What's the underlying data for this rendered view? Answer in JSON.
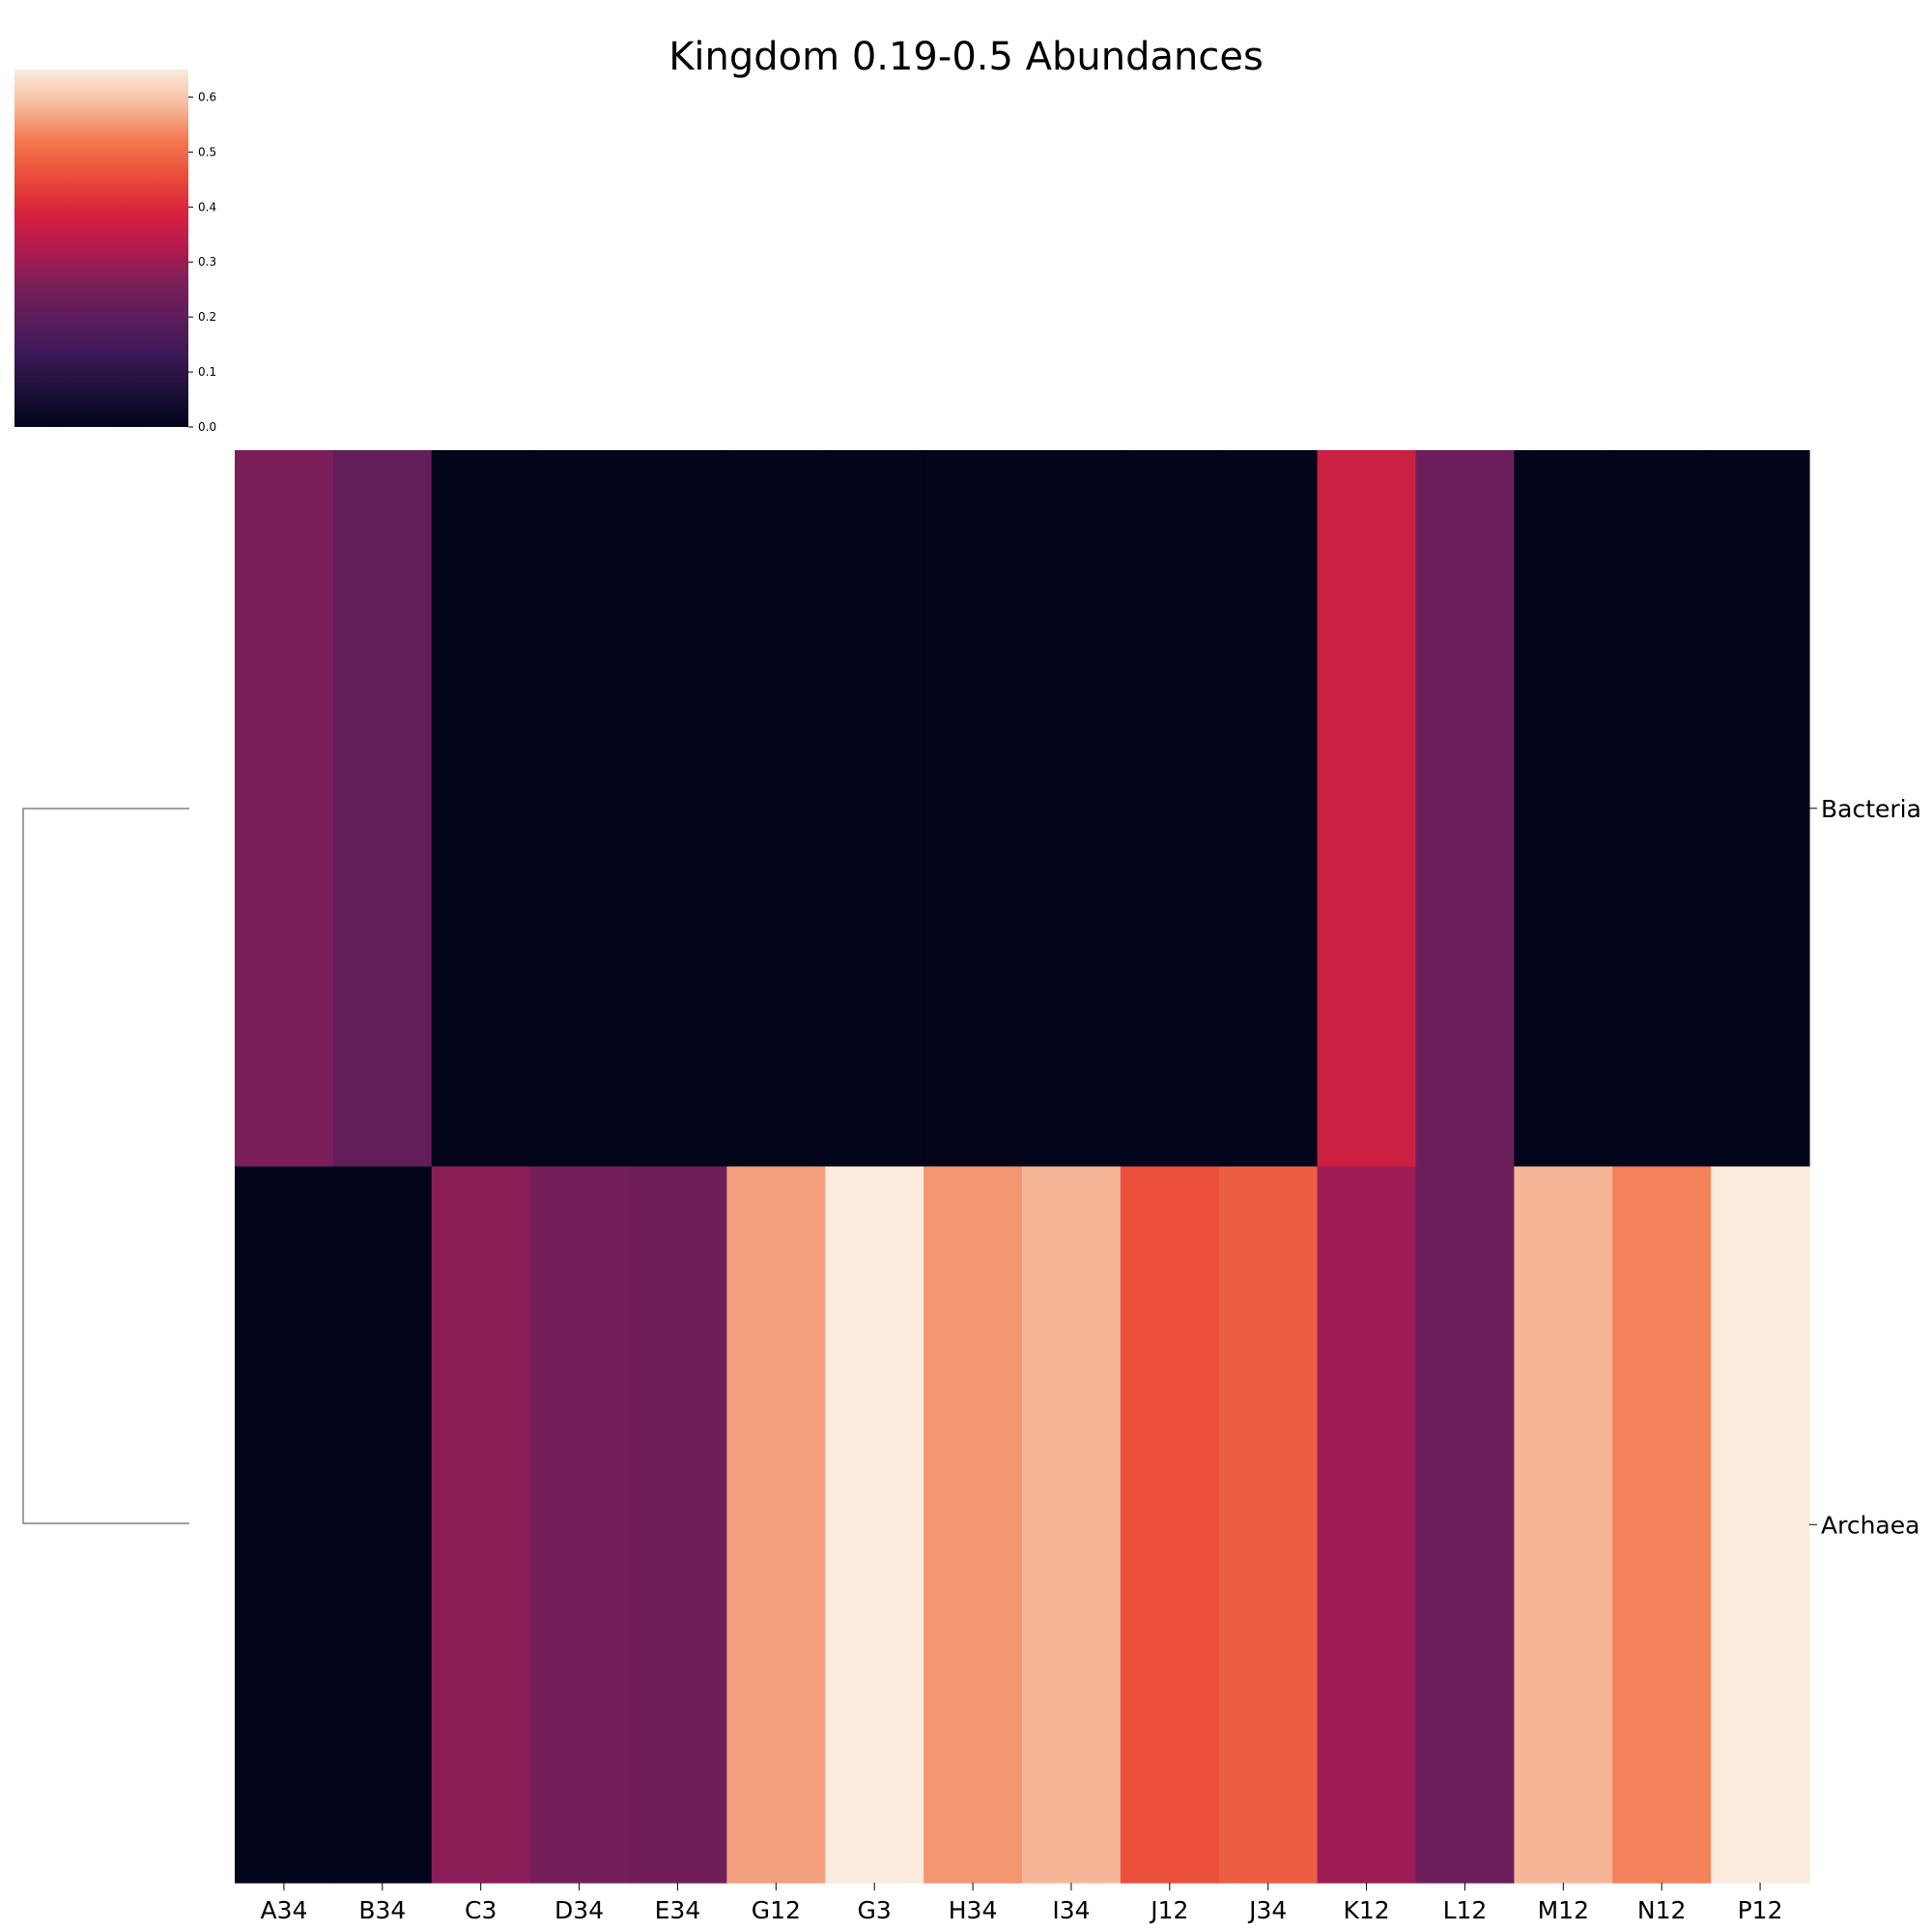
{
  "chart_data": {
    "type": "heatmap",
    "title": "Kingdom 0.19-0.5 Abundances",
    "columns": [
      "A34",
      "B34",
      "C3",
      "D34",
      "E34",
      "G12",
      "G3",
      "H34",
      "I34",
      "J12",
      "J34",
      "K12",
      "L12",
      "M12",
      "N12",
      "P12"
    ],
    "rows": [
      "Bacteria",
      "Archaea"
    ],
    "values": [
      [
        0.26,
        0.21,
        0.0,
        0.0,
        0.0,
        0.0,
        0.0,
        0.0,
        0.0,
        0.0,
        0.0,
        0.37,
        0.23,
        0.0,
        0.0,
        0.0
      ],
      [
        0.0,
        0.0,
        0.28,
        0.25,
        0.24,
        0.56,
        0.65,
        0.55,
        0.58,
        0.46,
        0.48,
        0.3,
        0.23,
        0.58,
        0.53,
        0.65
      ]
    ],
    "colorbar": {
      "colormap": "rocket",
      "range": [
        0.0,
        0.65
      ],
      "ticks": [
        "0.0",
        "0.1",
        "0.2",
        "0.3",
        "0.4",
        "0.5",
        "0.6"
      ]
    },
    "row_dendrogram": true,
    "grid": false,
    "legend_placement": "top-left"
  }
}
